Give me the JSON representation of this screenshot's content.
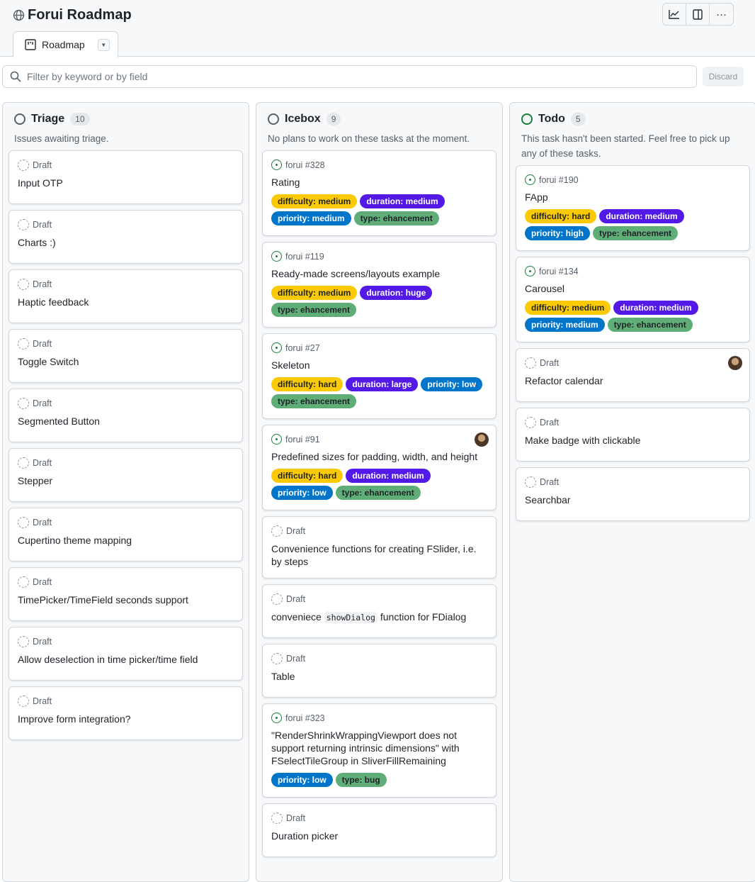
{
  "header": {
    "title": "Forui Roadmap",
    "tab": "Roadmap",
    "filter_placeholder": "Filter by keyword or by field",
    "discard": "Discard",
    "tools": [
      "insights-icon",
      "panel-icon",
      "more-icon"
    ]
  },
  "label_colors": {
    "difficulty": "#fbca04",
    "duration": "#5319e7",
    "priority": "#0075ca",
    "type": "#5fae78"
  },
  "columns": [
    {
      "name": "Triage",
      "count": "10",
      "status_color": "#57606a",
      "description": "Issues awaiting triage.",
      "items": [
        {
          "kind": "draft",
          "ref": "Draft",
          "title": "Input OTP"
        },
        {
          "kind": "draft",
          "ref": "Draft",
          "title": "Charts :)"
        },
        {
          "kind": "draft",
          "ref": "Draft",
          "title": "Haptic feedback"
        },
        {
          "kind": "draft",
          "ref": "Draft",
          "title": "Toggle Switch"
        },
        {
          "kind": "draft",
          "ref": "Draft",
          "title": "Segmented Button"
        },
        {
          "kind": "draft",
          "ref": "Draft",
          "title": "Stepper"
        },
        {
          "kind": "draft",
          "ref": "Draft",
          "title": "Cupertino theme mapping"
        },
        {
          "kind": "draft",
          "ref": "Draft",
          "title": "TimePicker/TimeField seconds support"
        },
        {
          "kind": "draft",
          "ref": "Draft",
          "title": "Allow deselection in time picker/time field"
        },
        {
          "kind": "draft",
          "ref": "Draft",
          "title": "Improve form integration?"
        }
      ]
    },
    {
      "name": "Icebox",
      "count": "9",
      "status_color": "#57606a",
      "description": "No plans to work on these tasks at the moment.",
      "items": [
        {
          "kind": "issue",
          "ref": "forui #328",
          "title": "Rating",
          "labels": [
            "difficulty: medium",
            "duration: medium",
            "priority: medium",
            "type: ehancement"
          ]
        },
        {
          "kind": "issue",
          "ref": "forui #119",
          "title": "Ready-made screens/layouts example",
          "labels": [
            "difficulty: medium",
            "duration: huge",
            "type: ehancement"
          ]
        },
        {
          "kind": "issue",
          "ref": "forui #27",
          "title": "Skeleton",
          "labels": [
            "difficulty: hard",
            "duration: large",
            "priority: low",
            "type: ehancement"
          ]
        },
        {
          "kind": "issue",
          "ref": "forui #91",
          "title": "Predefined sizes for padding, width, and height",
          "avatar": true,
          "labels": [
            "difficulty: hard",
            "duration: medium",
            "priority: low",
            "type: ehancement"
          ]
        },
        {
          "kind": "draft",
          "ref": "Draft",
          "title": "Convenience functions for creating FSlider, i.e. by steps"
        },
        {
          "kind": "draft",
          "ref": "Draft",
          "title_parts": [
            "conveniece ",
            "showDialog",
            " function for FDialog"
          ]
        },
        {
          "kind": "draft",
          "ref": "Draft",
          "title": "Table"
        },
        {
          "kind": "issue",
          "ref": "forui #323",
          "title": "\"RenderShrinkWrappingViewport does not support returning intrinsic dimensions\" with FSelectTileGroup in SliverFillRemaining",
          "labels": [
            "priority: low",
            "type: bug"
          ]
        },
        {
          "kind": "draft",
          "ref": "Draft",
          "title": "Duration picker"
        }
      ]
    },
    {
      "name": "Todo",
      "count": "5",
      "status_color": "#1a7f37",
      "description": "This task hasn't been started. Feel free to pick up any of these tasks.",
      "items": [
        {
          "kind": "issue",
          "ref": "forui #190",
          "title": "FApp",
          "labels": [
            "difficulty: hard",
            "duration: medium",
            "priority: high",
            "type: ehancement"
          ]
        },
        {
          "kind": "issue",
          "ref": "forui #134",
          "title": "Carousel",
          "labels": [
            "difficulty: medium",
            "duration: medium",
            "priority: medium",
            "type: ehancement"
          ]
        },
        {
          "kind": "draft",
          "ref": "Draft",
          "title": "Refactor calendar",
          "avatar": true
        },
        {
          "kind": "draft",
          "ref": "Draft",
          "title": "Make badge with clickable"
        },
        {
          "kind": "draft",
          "ref": "Draft",
          "title": "Searchbar"
        }
      ]
    }
  ]
}
